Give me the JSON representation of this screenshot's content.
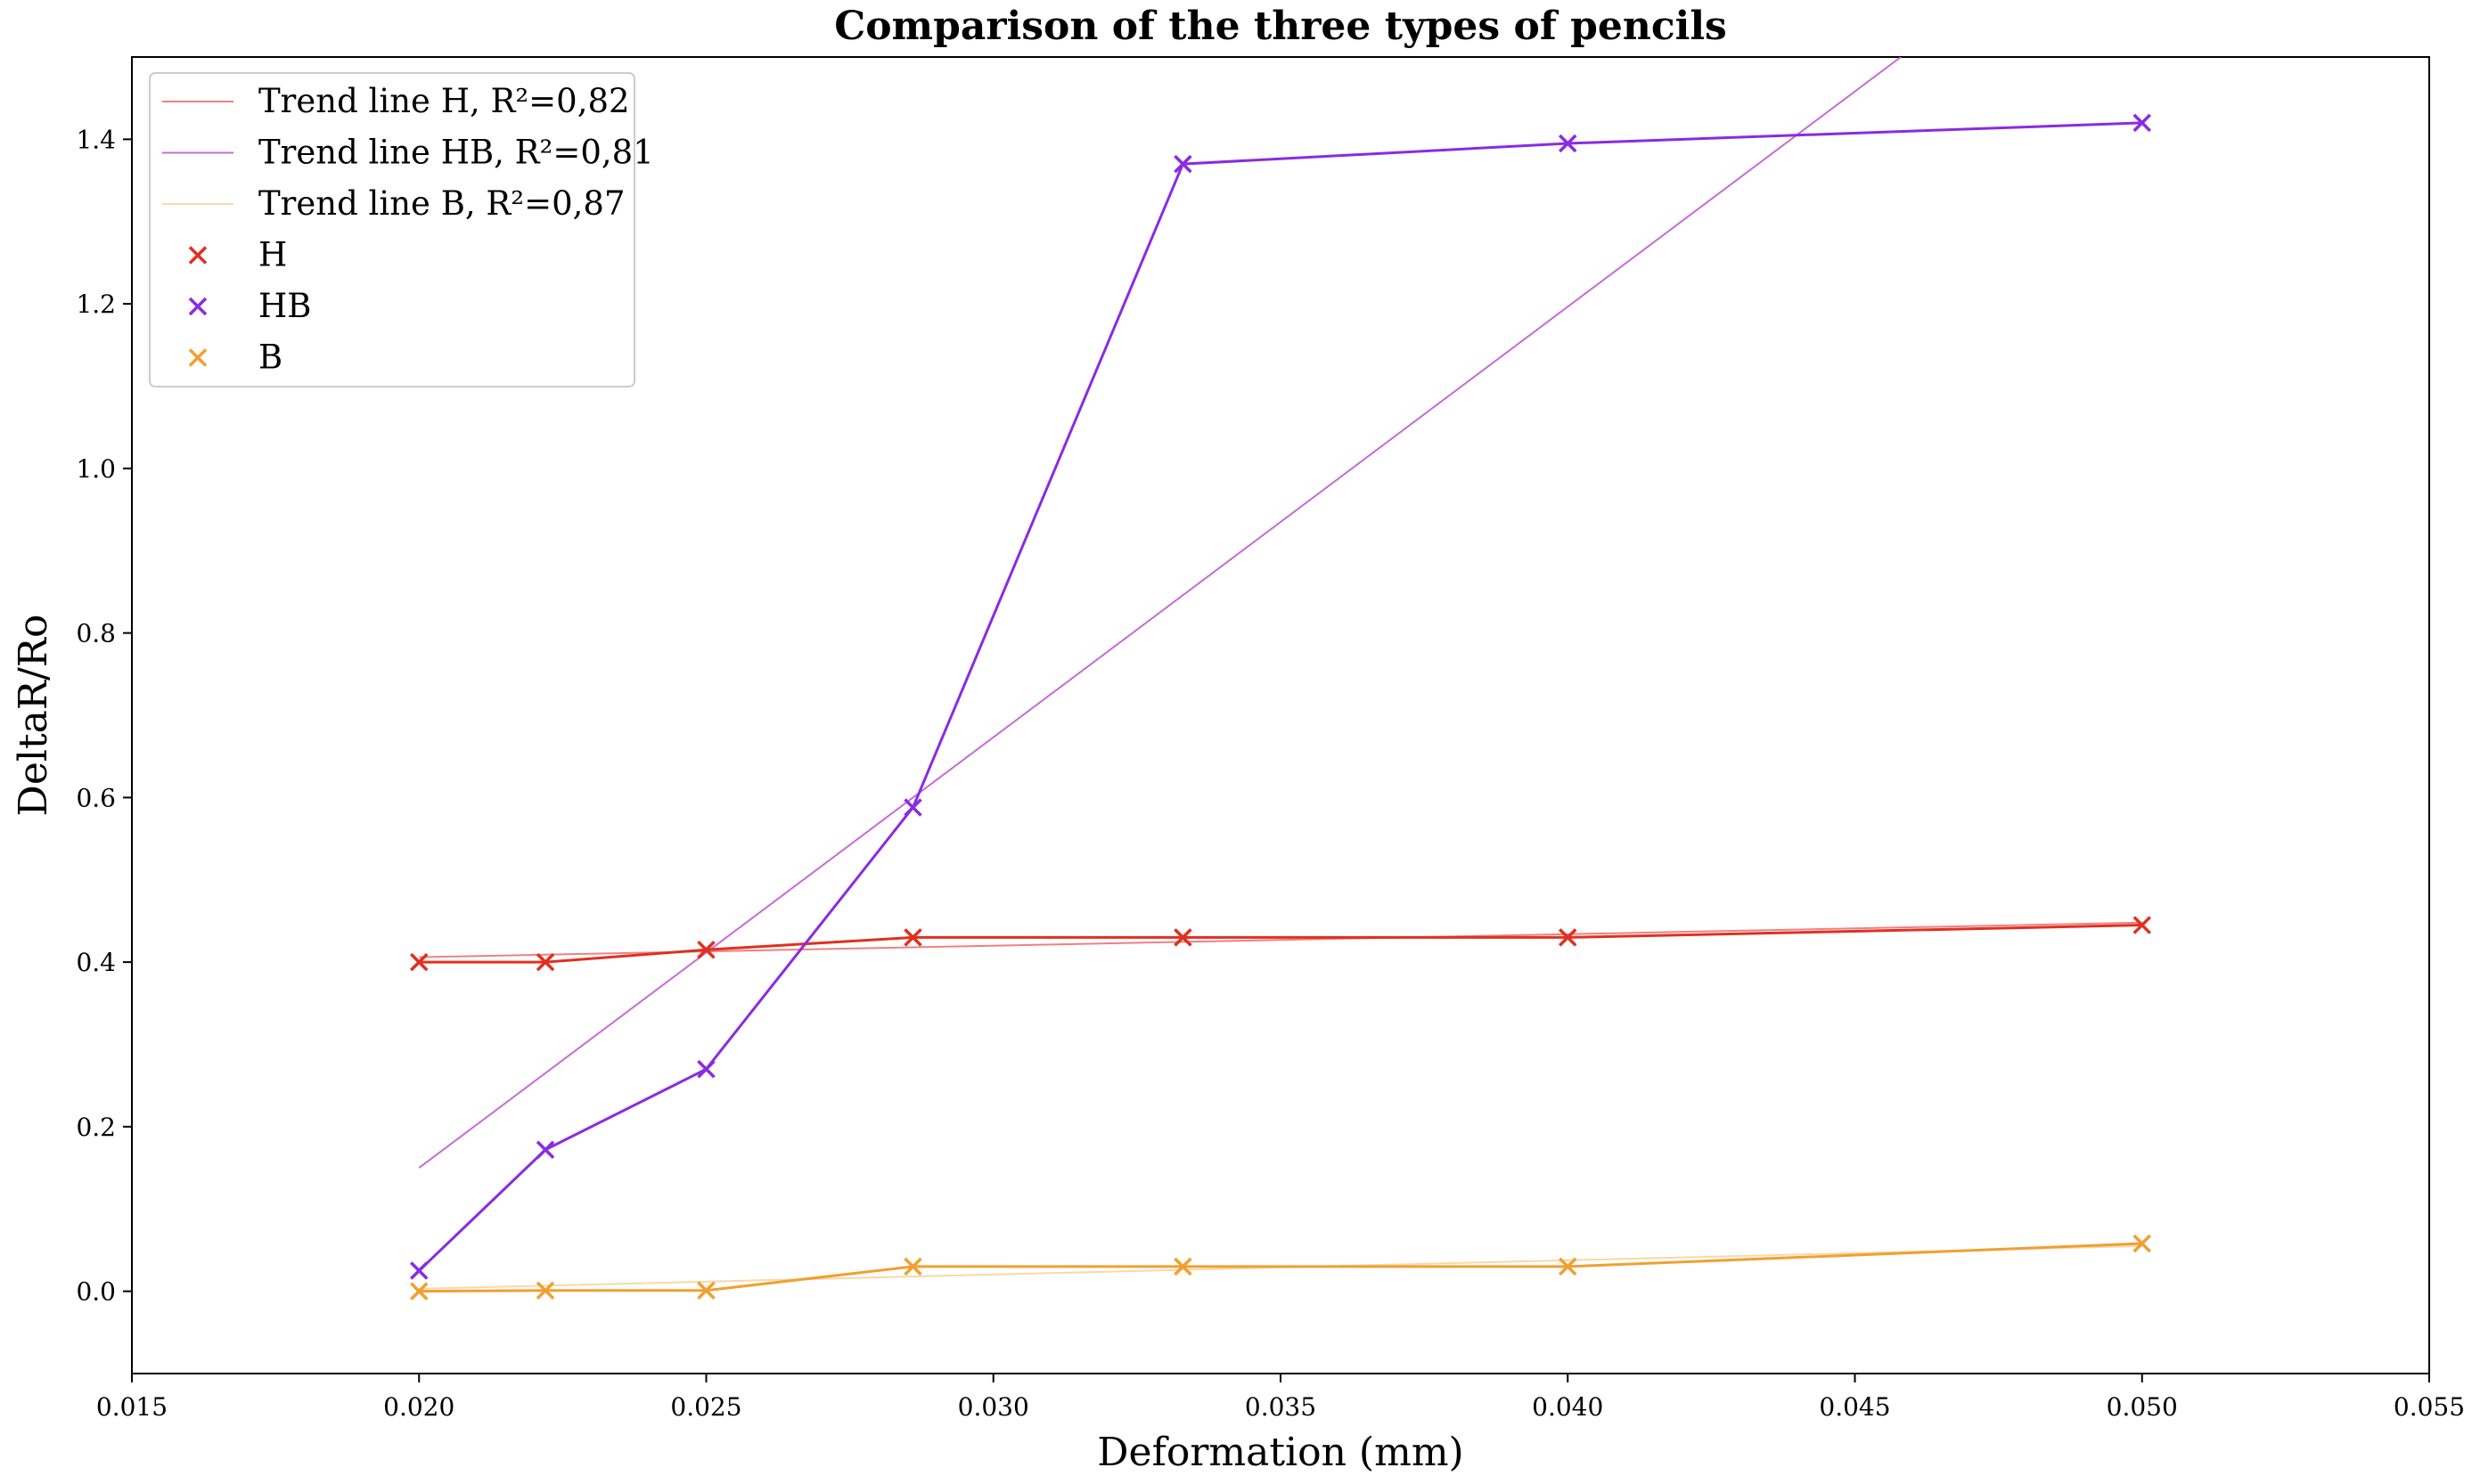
{
  "chart_data": {
    "type": "line",
    "title": "Comparison of the three types of pencils",
    "xlabel": "Deformation (mm)",
    "ylabel": "DeltaR/Ro",
    "xlim": [
      0.015,
      0.055
    ],
    "ylim": [
      -0.1,
      1.5
    ],
    "grid": false,
    "legend_position": "top-left",
    "x_ticks": [
      "0.015",
      "0.020",
      "0.025",
      "0.030",
      "0.035",
      "0.040",
      "0.045",
      "0.050",
      "0.055"
    ],
    "y_ticks": [
      "0.0",
      "0.2",
      "0.4",
      "0.6",
      "0.8",
      "1.0",
      "1.2",
      "1.4"
    ],
    "x_tick_values": [
      0.015,
      0.02,
      0.025,
      0.03,
      0.035,
      0.04,
      0.045,
      0.05,
      0.055
    ],
    "y_tick_values": [
      0.0,
      0.2,
      0.4,
      0.6,
      0.8,
      1.0,
      1.2,
      1.4
    ],
    "x": [
      0.02,
      0.0222,
      0.025,
      0.0286,
      0.0333,
      0.04,
      0.05
    ],
    "series": [
      {
        "name": "H",
        "color": "#e03020",
        "marker": "x",
        "values": [
          0.4,
          0.4,
          0.415,
          0.43,
          0.43,
          0.43,
          0.445
        ]
      },
      {
        "name": "HB",
        "color": "#8a2be2",
        "marker": "x",
        "values": [
          0.025,
          0.172,
          0.27,
          0.588,
          1.37,
          1.395,
          1.42
        ]
      },
      {
        "name": "B",
        "color": "#f0a030",
        "marker": "x",
        "values": [
          0.0,
          0.001,
          0.001,
          0.03,
          0.03,
          0.03,
          0.058
        ]
      }
    ],
    "trend_lines": [
      {
        "name": "Trend line H, R²=0,82",
        "color": "#f08080",
        "x": [
          0.02,
          0.05
        ],
        "values": [
          0.406,
          0.448
        ]
      },
      {
        "name": "Trend line HB, R²=0,81",
        "color": "#c86ad8",
        "x": [
          0.02,
          0.0458
        ],
        "values": [
          0.15,
          1.5
        ]
      },
      {
        "name": "Trend line B, R²=0,87",
        "color": "#f8d8a8",
        "x": [
          0.02,
          0.05
        ],
        "values": [
          0.003,
          0.055
        ]
      }
    ]
  }
}
